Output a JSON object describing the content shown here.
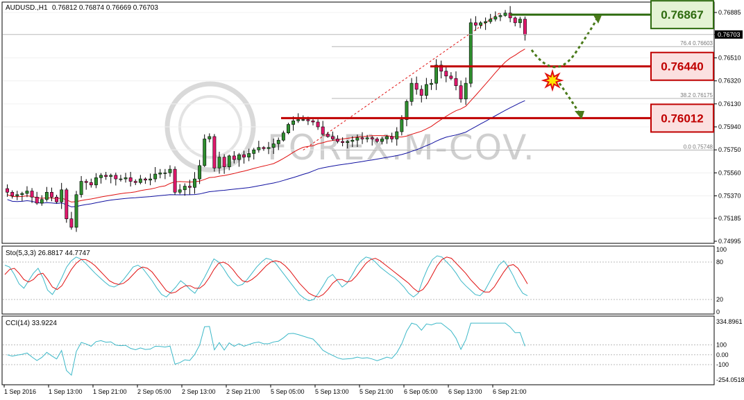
{
  "header": {
    "symbol": "AUDUSD.,H1",
    "ohlc": "0.76812 0.76874 0.76669 0.76703"
  },
  "watermark": "FOREX.M-COV.",
  "price_axis": {
    "ticks": [
      "0.76885",
      "0.76703",
      "0.76510",
      "0.76320",
      "0.76130",
      "0.75940",
      "0.75750",
      "0.75560",
      "0.75370",
      "0.75185",
      "0.74995"
    ],
    "current_price": "0.76703",
    "current_price_color": "#000000"
  },
  "fib_labels": [
    {
      "text": "76.4  0.76603",
      "price": 0.76603
    },
    {
      "text": "38.2  0.76175",
      "price": 0.76175
    },
    {
      "text": "0.0  0.75748",
      "price": 0.75748
    }
  ],
  "levels": [
    {
      "price": 0.76867,
      "label": "0.76867",
      "color": "#2e6b0f",
      "box_bg": "#e4f3d4",
      "text_color": "#2e6b0f"
    },
    {
      "price": 0.7644,
      "label": "0.76440",
      "color": "#c00000",
      "box_bg": "#fbe0e0",
      "text_color": "#c00000"
    },
    {
      "price": 0.76012,
      "label": "0.76012",
      "color": "#c00000",
      "box_bg": "#fbe0e0",
      "text_color": "#c00000"
    }
  ],
  "stochastic": {
    "label": "Sto(5,3,3) 26.8817 44.7747",
    "ticks": [
      "100",
      "80",
      "20",
      "0"
    ]
  },
  "cci": {
    "label": "CCI(14) 33.9224",
    "ticks": [
      "334.8961",
      "100",
      "0.00",
      "-100",
      "-254.0518"
    ]
  },
  "time_axis": {
    "labels": [
      "1 Sep 2016",
      "1 Sep 13:00",
      "1 Sep 21:00",
      "2 Sep 05:00",
      "2 Sep 13:00",
      "2 Sep 21:00",
      "5 Sep 05:00",
      "5 Sep 13:00",
      "5 Sep 21:00",
      "6 Sep 05:00",
      "6 Sep 13:00",
      "6 Sep 21:00"
    ]
  },
  "colors": {
    "bull": "#2f8f2f",
    "bear": "#e0186c",
    "ma_fast": "#e01010",
    "ma_slow": "#1010a0",
    "stoch_main": "#3cb8c8",
    "stoch_signal": "#e01010",
    "cci": "#3cb8c8",
    "arrow": "#4a7a1a"
  },
  "chart_data": {
    "type": "candlestick",
    "symbol": "AUDUSD.",
    "timeframe": "H1",
    "ylim": [
      0.74995,
      0.76885
    ],
    "closes": [
      0.754,
      0.7537,
      0.7538,
      0.7539,
      0.7541,
      0.7536,
      0.7531,
      0.7534,
      0.754,
      0.7536,
      0.7532,
      0.7542,
      0.7518,
      0.7511,
      0.7538,
      0.7549,
      0.7548,
      0.7546,
      0.7552,
      0.7554,
      0.7553,
      0.7554,
      0.7551,
      0.7551,
      0.7552,
      0.7549,
      0.7548,
      0.7551,
      0.755,
      0.7551,
      0.7555,
      0.7556,
      0.7556,
      0.7559,
      0.754,
      0.7542,
      0.7545,
      0.7544,
      0.7551,
      0.7562,
      0.7584,
      0.7586,
      0.756,
      0.7569,
      0.7561,
      0.757,
      0.7567,
      0.7571,
      0.7569,
      0.7572,
      0.7575,
      0.7577,
      0.7576,
      0.7577,
      0.758,
      0.7583,
      0.7589,
      0.7596,
      0.7599,
      0.76,
      0.76,
      0.7599,
      0.7598,
      0.7594,
      0.7588,
      0.7586,
      0.7584,
      0.7582,
      0.7581,
      0.7582,
      0.7583,
      0.7585,
      0.7584,
      0.7585,
      0.7584,
      0.7582,
      0.7584,
      0.7586,
      0.7584,
      0.759,
      0.76,
      0.7615,
      0.763,
      0.7625,
      0.762,
      0.7629,
      0.763,
      0.7645,
      0.764,
      0.7636,
      0.7634,
      0.7628,
      0.7617,
      0.763,
      0.768,
      0.7678,
      0.768,
      0.7681,
      0.7683,
      0.7685,
      0.7686,
      0.7688,
      0.7684,
      0.768,
      0.7683,
      0.767
    ]
  },
  "panels": {
    "stoch_main": [
      75,
      72,
      60,
      45,
      38,
      50,
      62,
      70,
      55,
      35,
      28,
      40,
      55,
      72,
      82,
      88,
      85,
      78,
      70,
      62,
      55,
      48,
      42,
      40,
      44,
      52,
      62,
      72,
      75,
      70,
      60,
      50,
      38,
      28,
      24,
      32,
      40,
      50,
      44,
      36,
      30,
      42,
      55,
      70,
      85,
      80,
      70,
      58,
      48,
      42,
      44,
      52,
      62,
      72,
      80,
      86,
      84,
      78,
      68,
      58,
      48,
      38,
      28,
      22,
      18,
      20,
      30,
      42,
      55,
      60,
      50,
      40,
      46,
      58,
      72,
      82,
      88,
      86,
      80,
      72,
      66,
      60,
      55,
      48,
      40,
      30,
      24,
      30,
      52,
      70,
      84,
      90,
      88,
      80,
      72,
      62,
      50,
      42,
      35,
      28,
      26,
      34,
      48,
      62,
      75,
      82,
      72,
      58,
      42,
      30,
      26
    ],
    "stoch_signal": [
      60,
      68,
      70,
      62,
      52,
      48,
      52,
      60,
      62,
      52,
      40,
      36,
      42,
      55,
      68,
      78,
      84,
      84,
      80,
      74,
      66,
      58,
      50,
      46,
      44,
      46,
      52,
      60,
      68,
      72,
      70,
      64,
      54,
      44,
      34,
      30,
      32,
      38,
      42,
      42,
      38,
      38,
      44,
      55,
      68,
      78,
      80,
      76,
      68,
      58,
      50,
      48,
      52,
      58,
      66,
      74,
      80,
      82,
      80,
      74,
      66,
      56,
      46,
      38,
      30,
      26,
      24,
      28,
      36,
      46,
      52,
      52,
      48,
      50,
      58,
      68,
      78,
      84,
      86,
      82,
      76,
      70,
      64,
      58,
      52,
      46,
      38,
      32,
      36,
      46,
      60,
      74,
      84,
      88,
      86,
      78,
      70,
      62,
      52,
      44,
      36,
      32,
      32,
      40,
      52,
      64,
      74,
      76,
      70,
      58,
      45
    ]
  }
}
